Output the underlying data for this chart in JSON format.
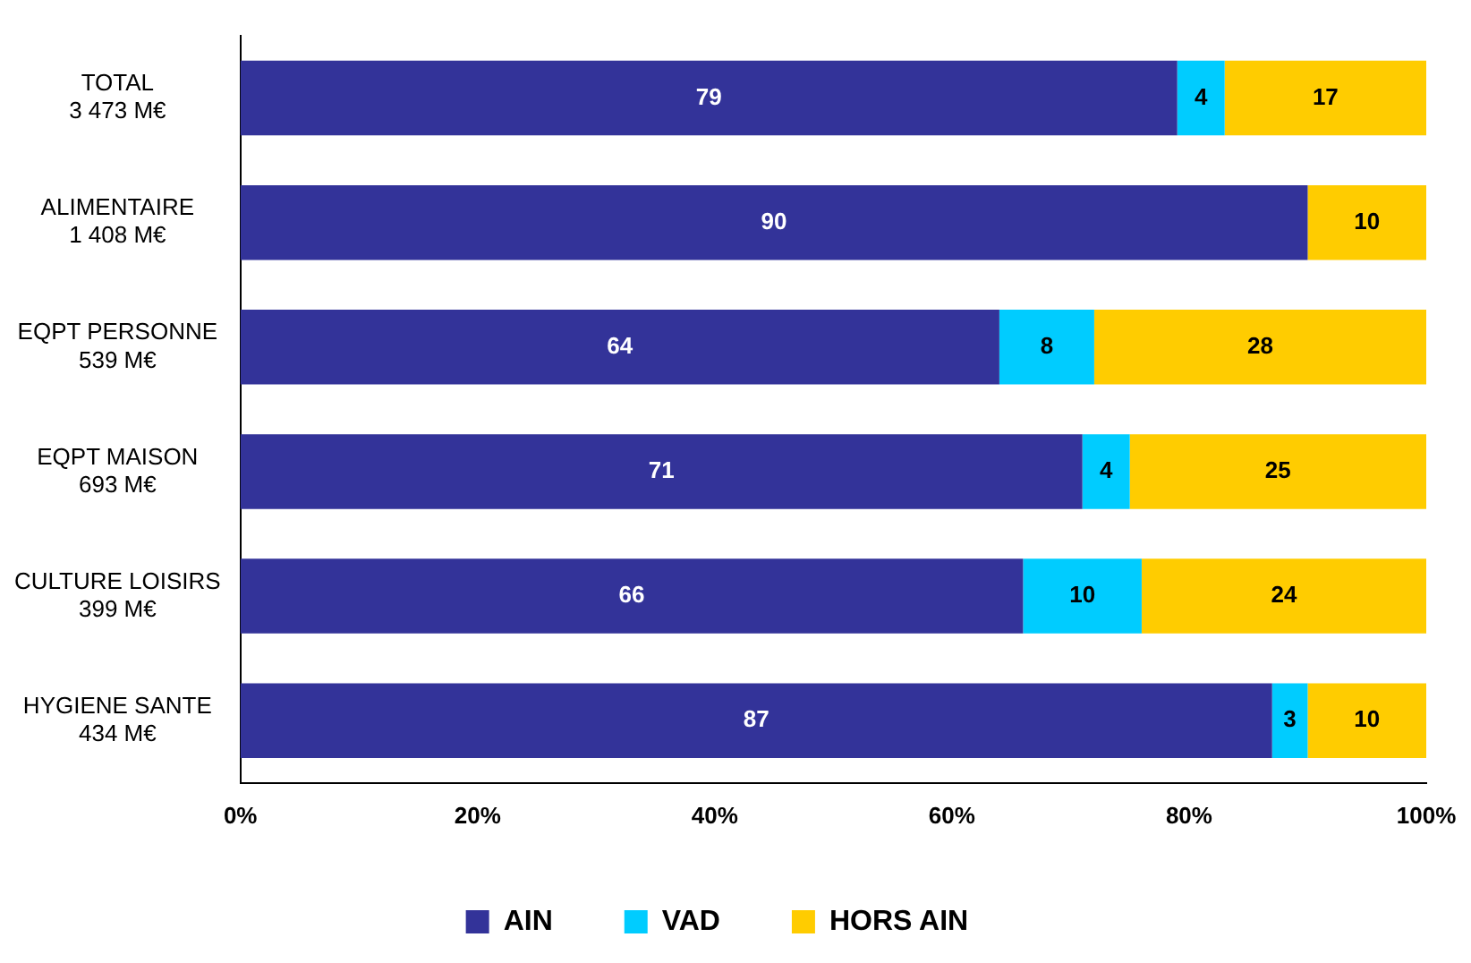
{
  "chart_data": {
    "type": "bar",
    "orientation": "horizontal",
    "stacked": true,
    "categories": [
      "TOTAL\n3 473 M€",
      "ALIMENTAIRE\n1 408 M€",
      "EQPT PERSONNE\n539 M€",
      "EQPT MAISON\n693 M€",
      "CULTURE LOISIRS\n399 M€",
      "HYGIENE SANTE\n434 M€"
    ],
    "series": [
      {
        "name": "AIN",
        "color": "#333399",
        "values": [
          79,
          90,
          64,
          71,
          66,
          87
        ]
      },
      {
        "name": "VAD",
        "color": "#00ccff",
        "values": [
          4,
          null,
          8,
          4,
          10,
          3
        ]
      },
      {
        "name": "HORS AIN",
        "color": "#ffcc00",
        "values": [
          17,
          10,
          28,
          25,
          24,
          10
        ]
      }
    ],
    "xlim": [
      0,
      100
    ],
    "xticks": [
      {
        "value": 0,
        "label": "0%"
      },
      {
        "value": 20,
        "label": "20%"
      },
      {
        "value": 40,
        "label": "40%"
      },
      {
        "value": 60,
        "label": "60%"
      },
      {
        "value": 80,
        "label": "80%"
      },
      {
        "value": 100,
        "label": "100%"
      }
    ],
    "data_labels": true,
    "legend": "bottom",
    "grid": false
  }
}
